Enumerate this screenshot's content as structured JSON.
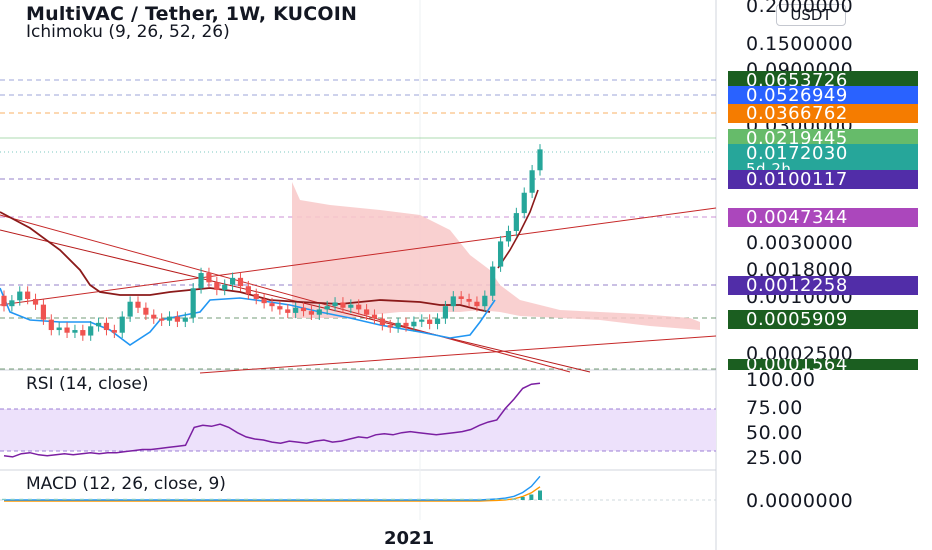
{
  "header": {
    "symbol_line": "MultiVAC / Tether, 1W, KUCOIN",
    "indicator_line": "Ichimoku (9, 26, 52, 26)"
  },
  "currency_button": "USDT",
  "panes": {
    "rsi_label": "RSI (14, close)",
    "macd_label": "MACD (12, 26, close, 9)"
  },
  "time_axis": {
    "year_label": "2021"
  },
  "price_scale": {
    "labels": [
      "0.2000000",
      "0.1500000",
      "0.0900000",
      "0.0300000",
      "0.0030000",
      "0.0018000",
      "0.0010000",
      "0.0002500"
    ],
    "tags": [
      {
        "value": "0.0653726",
        "color": "#1b5e20"
      },
      {
        "value": "0.0526949",
        "color": "#2962ff"
      },
      {
        "value": "0.0366762",
        "color": "#f57c00"
      },
      {
        "value": "0.0219445",
        "color": "#66bb6a"
      },
      {
        "value": "0.0172030",
        "sub": "5d 2h",
        "color": "#26a69a"
      },
      {
        "value": "0.0100117",
        "color": "#512da8"
      },
      {
        "value": "0.0047344",
        "color": "#ab47bc"
      },
      {
        "value": "0.0012258",
        "color": "#512da8"
      },
      {
        "value": "0.0005909",
        "color": "#1b5e20"
      },
      {
        "value": "0.0001564",
        "color": "#1b5e20"
      }
    ]
  },
  "rsi_scale": [
    "100.00",
    "75.00",
    "50.00",
    "25.00"
  ],
  "macd_scale": [
    "0.0000000"
  ],
  "colors": {
    "up": "#26a69a",
    "down": "#ef5350",
    "cloud": "#f8c8c8",
    "rsi_line": "#7b1fa2",
    "rsi_band": "#ede1fb"
  },
  "candles": [
    {
      "o": 0.00075,
      "c": 0.0006
    },
    {
      "o": 0.0006,
      "c": 0.00068
    },
    {
      "o": 0.00068,
      "c": 0.00082
    },
    {
      "o": 0.00082,
      "c": 0.0007
    },
    {
      "o": 0.0007,
      "c": 0.00062
    },
    {
      "o": 0.00062,
      "c": 0.00045
    },
    {
      "o": 0.00045,
      "c": 0.00036
    },
    {
      "o": 0.00036,
      "c": 0.00038
    },
    {
      "o": 0.00038,
      "c": 0.00034
    },
    {
      "o": 0.00034,
      "c": 0.00036
    },
    {
      "o": 0.00036,
      "c": 0.00032
    },
    {
      "o": 0.00032,
      "c": 0.00039
    },
    {
      "o": 0.00039,
      "c": 0.00042
    },
    {
      "o": 0.00042,
      "c": 0.00036
    },
    {
      "o": 0.00036,
      "c": 0.00034
    },
    {
      "o": 0.00034,
      "c": 0.00048
    },
    {
      "o": 0.00048,
      "c": 0.00066
    },
    {
      "o": 0.00066,
      "c": 0.00058
    },
    {
      "o": 0.00058,
      "c": 0.0005
    },
    {
      "o": 0.0005,
      "c": 0.00046
    },
    {
      "o": 0.00046,
      "c": 0.00044
    },
    {
      "o": 0.00044,
      "c": 0.00048
    },
    {
      "o": 0.00048,
      "c": 0.00043
    },
    {
      "o": 0.00043,
      "c": 0.00047
    },
    {
      "o": 0.00047,
      "c": 0.00088
    },
    {
      "o": 0.00088,
      "c": 0.00122
    },
    {
      "o": 0.00122,
      "c": 0.001
    },
    {
      "o": 0.001,
      "c": 0.00085
    },
    {
      "o": 0.00085,
      "c": 0.00095
    },
    {
      "o": 0.00095,
      "c": 0.0011
    },
    {
      "o": 0.0011,
      "c": 0.00092
    },
    {
      "o": 0.00092,
      "c": 0.00078
    },
    {
      "o": 0.00078,
      "c": 0.0007
    },
    {
      "o": 0.0007,
      "c": 0.00064
    },
    {
      "o": 0.00064,
      "c": 0.0006
    },
    {
      "o": 0.0006,
      "c": 0.00056
    },
    {
      "o": 0.00056,
      "c": 0.00052
    },
    {
      "o": 0.00052,
      "c": 0.00058
    },
    {
      "o": 0.00058,
      "c": 0.00054
    },
    {
      "o": 0.00054,
      "c": 0.0005
    },
    {
      "o": 0.0005,
      "c": 0.00056
    },
    {
      "o": 0.00056,
      "c": 0.0006
    },
    {
      "o": 0.0006,
      "c": 0.00065
    },
    {
      "o": 0.00065,
      "c": 0.00058
    },
    {
      "o": 0.00058,
      "c": 0.00062
    },
    {
      "o": 0.00062,
      "c": 0.00056
    },
    {
      "o": 0.00056,
      "c": 0.0005
    },
    {
      "o": 0.0005,
      "c": 0.00046
    },
    {
      "o": 0.00046,
      "c": 0.0004
    },
    {
      "o": 0.0004,
      "c": 0.00038
    },
    {
      "o": 0.00038,
      "c": 0.00042
    },
    {
      "o": 0.00042,
      "c": 0.00039
    },
    {
      "o": 0.00039,
      "c": 0.00043
    },
    {
      "o": 0.00043,
      "c": 0.00045
    },
    {
      "o": 0.00045,
      "c": 0.00041
    },
    {
      "o": 0.00041,
      "c": 0.00046
    },
    {
      "o": 0.00046,
      "c": 0.0006
    },
    {
      "o": 0.0006,
      "c": 0.00074
    },
    {
      "o": 0.00074,
      "c": 0.0007
    },
    {
      "o": 0.0007,
      "c": 0.00066
    },
    {
      "o": 0.00066,
      "c": 0.0006
    },
    {
      "o": 0.0006,
      "c": 0.00075
    },
    {
      "o": 0.00075,
      "c": 0.0014
    },
    {
      "o": 0.0014,
      "c": 0.0024
    },
    {
      "o": 0.0024,
      "c": 0.003
    },
    {
      "o": 0.003,
      "c": 0.0044
    },
    {
      "o": 0.0044,
      "c": 0.0068
    },
    {
      "o": 0.0068,
      "c": 0.011
    },
    {
      "o": 0.011,
      "c": 0.0172
    }
  ],
  "rsi_values": [
    28,
    27,
    30,
    31,
    29,
    28,
    29,
    30,
    29,
    30,
    31,
    30,
    31,
    31,
    32,
    33,
    34,
    34,
    35,
    36,
    37,
    38,
    55,
    57,
    56,
    58,
    55,
    50,
    46,
    44,
    43,
    41,
    40,
    42,
    41,
    40,
    42,
    43,
    41,
    42,
    44,
    46,
    45,
    48,
    49,
    48,
    50,
    51,
    50,
    49,
    48,
    49,
    50,
    51,
    53,
    57,
    60,
    62,
    73,
    82,
    92,
    96,
    97
  ],
  "macd_values": [
    0,
    0,
    0,
    0,
    0,
    0,
    0,
    0,
    0,
    0,
    0,
    0,
    0,
    0,
    0,
    0,
    0,
    0,
    0,
    0,
    0,
    0,
    0,
    0,
    0,
    0,
    0,
    0,
    0,
    0,
    0,
    0,
    0,
    0,
    0,
    0,
    0,
    0,
    0,
    0,
    0,
    0,
    0,
    0,
    0,
    0,
    0,
    0,
    0,
    0,
    0,
    0,
    0,
    0,
    0,
    0,
    4e-05,
    8e-05,
    0.00015,
    0.0003,
    0.0006,
    0.0011,
    0.0019
  ]
}
